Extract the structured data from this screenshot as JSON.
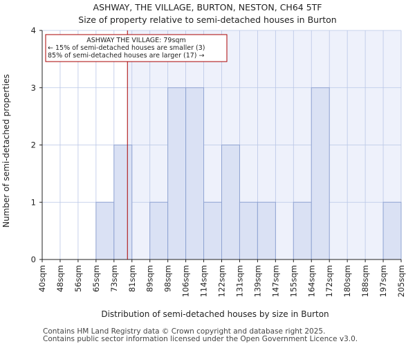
{
  "chart_data": {
    "type": "histogram",
    "title_line1": "ASHWAY, THE VILLAGE, BURTON, NESTON, CH64 5TF",
    "title_line2": "Size of property relative to semi-detached houses in Burton",
    "xlabel": "Distribution of semi-detached houses by size in Burton",
    "ylabel": "Number of semi-detached properties",
    "ylim": [
      0,
      4
    ],
    "yticks": [
      0,
      1,
      2,
      3,
      4
    ],
    "categories": [
      "40sqm",
      "48sqm",
      "56sqm",
      "65sqm",
      "73sqm",
      "81sqm",
      "89sqm",
      "98sqm",
      "106sqm",
      "114sqm",
      "122sqm",
      "131sqm",
      "139sqm",
      "147sqm",
      "155sqm",
      "164sqm",
      "172sqm",
      "180sqm",
      "188sqm",
      "197sqm",
      "205sqm"
    ],
    "values": [
      0,
      0,
      0,
      1,
      2,
      0,
      1,
      3,
      3,
      1,
      2,
      1,
      1,
      0,
      1,
      3,
      0,
      0,
      0,
      1
    ],
    "bar_color": "#dae1f4",
    "bar_edge": "#8fa3d2",
    "highlight_bg": "#eef1fb",
    "marker": {
      "value_label": "79sqm",
      "color": "#aa0000",
      "position_index": 4.75
    },
    "annotation": {
      "line1": "ASHWAY THE VILLAGE: 79sqm",
      "line2": "← 15% of semi-detached houses are smaller (3)",
      "line3": "85% of semi-detached houses are larger (17) →"
    }
  },
  "footer": {
    "line1": "Contains HM Land Registry data © Crown copyright and database right 2025.",
    "line2": "Contains public sector information licensed under the Open Government Licence v3.0."
  }
}
